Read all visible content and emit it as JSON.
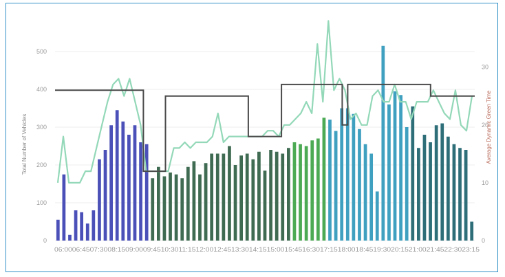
{
  "chart_data": {
    "type": "bar",
    "title": "",
    "ylabel": "Total Number of Vehicles",
    "y2label": "Average Dynamic Green Time",
    "ylim": [
      0,
      520
    ],
    "y2lim": [
      0,
      34
    ],
    "yticks": [
      0,
      100,
      200,
      300,
      400,
      500
    ],
    "y2ticks": [
      0,
      10,
      20,
      30
    ],
    "grid": true,
    "x_tick_labels": [
      "06:00",
      "06:45",
      "07:30",
      "08:15",
      "09:00",
      "09:45",
      "10:30",
      "11:15",
      "12:00",
      "12:45",
      "13:30",
      "14:15",
      "15:00",
      "15:45",
      "16:30",
      "17:15",
      "18:00",
      "18:45",
      "19:30",
      "20:15",
      "21:00",
      "21:45",
      "22:30",
      "23:15"
    ],
    "x_tick_label_text": "06:0006:4507:3008:1509:0009:4510:3011:1512:0012:4513:3014:1515:0015:4516:3017:1518:0018:4519:3020:1521:0021:4522:3023:15",
    "colors": {
      "blue_group": "#4b50b8",
      "dark_green_group": "#3f6b52",
      "green_group": "#4caa55",
      "teal_group": "#3fa0c0",
      "dark_teal_group": "#2d6e78",
      "line_avg": "#93d8b8",
      "line_step": "#4a4a4a",
      "grid": "#ececec",
      "frame": "#2f8fc7",
      "y2_title": "#b86a5a"
    },
    "bar_groups": [
      {
        "color_key": "blue_group",
        "values": [
          55,
          175,
          15,
          80,
          75,
          45,
          80,
          215,
          240,
          305,
          345,
          315,
          280,
          305,
          260,
          255
        ]
      },
      {
        "color_key": "dark_green_group",
        "values": [
          165,
          195,
          170,
          180,
          175,
          165,
          195,
          210,
          175,
          205,
          230,
          230,
          230,
          250,
          200,
          225,
          230,
          215,
          235,
          185,
          240,
          235,
          230,
          245
        ]
      },
      {
        "color_key": "green_group",
        "values": [
          260,
          255,
          250,
          265,
          270,
          325
        ]
      },
      {
        "color_key": "teal_group",
        "values": [
          320,
          290,
          350,
          350,
          335,
          295,
          255,
          230,
          130,
          515,
          360,
          395,
          385,
          300
        ]
      },
      {
        "color_key": "dark_teal_group",
        "values": [
          355,
          245,
          280,
          260,
          305,
          310,
          275,
          255,
          245,
          240,
          50
        ]
      }
    ],
    "series": [
      {
        "name": "",
        "type": "line",
        "color_key": "line_avg",
        "axis": "y2",
        "values": [
          10,
          18,
          10,
          10,
          10,
          12,
          12,
          16,
          20,
          24,
          27,
          28,
          25,
          28,
          24,
          20,
          12,
          12,
          12,
          12,
          12,
          16,
          16,
          17,
          16,
          17,
          17,
          17,
          18,
          22,
          17,
          18,
          18,
          18,
          18,
          18,
          18,
          18,
          19,
          19,
          18,
          20,
          20,
          21,
          22,
          24,
          22,
          34,
          24,
          38,
          26,
          28,
          26,
          21,
          22,
          20,
          20,
          25,
          26,
          24,
          24,
          27,
          24,
          24,
          21,
          24,
          24,
          24,
          26,
          24,
          22,
          21,
          26,
          20,
          19,
          25
        ]
      },
      {
        "name": "",
        "type": "step",
        "color_key": "line_step",
        "axis": "y2",
        "values": [
          26,
          26,
          26,
          26,
          26,
          26,
          26,
          26,
          26,
          26,
          26,
          26,
          26,
          26,
          26,
          26,
          12,
          12,
          12,
          12,
          25,
          25,
          25,
          25,
          25,
          25,
          25,
          25,
          25,
          25,
          25,
          25,
          25,
          25,
          25,
          18,
          18,
          18,
          18,
          18,
          18,
          27,
          27,
          27,
          27,
          27,
          27,
          27,
          27,
          27,
          27,
          27,
          20,
          27,
          27,
          27,
          27,
          27,
          27,
          27,
          27,
          27,
          27,
          27,
          27,
          27,
          27,
          27,
          25,
          25,
          25,
          25,
          25,
          25,
          25,
          25
        ]
      }
    ]
  }
}
